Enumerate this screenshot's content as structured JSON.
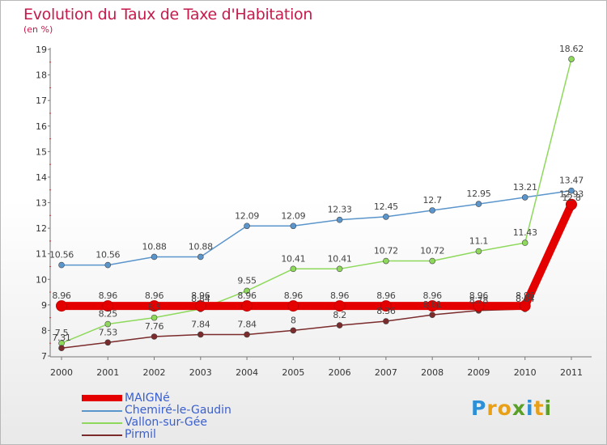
{
  "chart_data": {
    "type": "line",
    "title": "Evolution du Taux de Taxe d'Habitation",
    "subtitle": "(en %)",
    "ylim": [
      7,
      19
    ],
    "y_ticks": [
      "7",
      "8",
      "9",
      "10",
      "11",
      "12",
      "13",
      "14",
      "15",
      "16",
      "17",
      "18",
      "19"
    ],
    "x": [
      "2000",
      "2001",
      "2002",
      "2003",
      "2004",
      "2005",
      "2006",
      "2007",
      "2008",
      "2009",
      "2010",
      "2011"
    ],
    "grid": false,
    "legend_placement": "bottom-left",
    "series": [
      {
        "name": "MAIGNé",
        "color": "#e50000",
        "values": [
          8.96,
          8.96,
          8.96,
          8.96,
          8.96,
          8.96,
          8.96,
          8.96,
          8.96,
          8.96,
          8.96,
          12.93
        ],
        "labels": [
          "8.96",
          "8.96",
          "8.96",
          "8.96",
          "8.96",
          "8.96",
          "8.96",
          "8.96",
          "8.96",
          "8.96",
          "8.96",
          "12.93"
        ]
      },
      {
        "name": "Chemiré-le-Gaudin",
        "color": "#5a95cc",
        "values": [
          10.56,
          10.56,
          10.88,
          10.88,
          12.09,
          12.09,
          12.33,
          12.45,
          12.7,
          12.95,
          13.21,
          13.47
        ],
        "labels": [
          "10.56",
          "10.56",
          "10.88",
          "10.88",
          "12.09",
          "12.09",
          "12.33",
          "12.45",
          "12.7",
          "12.95",
          "13.21",
          "13.47"
        ]
      },
      {
        "name": "Vallon-sur-Gée",
        "color": "#8ed95c",
        "values": [
          7.5,
          8.25,
          8.5,
          8.84,
          9.55,
          10.41,
          10.41,
          10.72,
          10.72,
          11.1,
          11.43,
          18.62
        ],
        "labels": [
          "7.5",
          "8.25",
          "8.5",
          "8.84",
          "9.55",
          "10.41",
          "10.41",
          "10.72",
          "10.72",
          "11.1",
          "11.43",
          "18.62"
        ]
      },
      {
        "name": "Pirmil",
        "color": "#7b2b2b",
        "values": [
          7.31,
          7.53,
          7.76,
          7.84,
          7.84,
          8.0,
          8.2,
          8.36,
          8.61,
          8.78,
          8.84,
          12.8
        ],
        "labels": [
          "7.31",
          "7.53",
          "7.76",
          "7.84",
          "7.84",
          "8",
          "8.2",
          "8.36",
          "8.61",
          "8.78",
          "8.84",
          "12.8"
        ]
      }
    ]
  },
  "logo": {
    "letters": [
      "P",
      "r",
      "o",
      "x",
      "i",
      "t",
      "i"
    ],
    "colors": [
      "#2d8fd8",
      "#e8a018",
      "#e8a018",
      "#5aa028",
      "#2d8fd8",
      "#e8a018",
      "#5aa028"
    ]
  }
}
